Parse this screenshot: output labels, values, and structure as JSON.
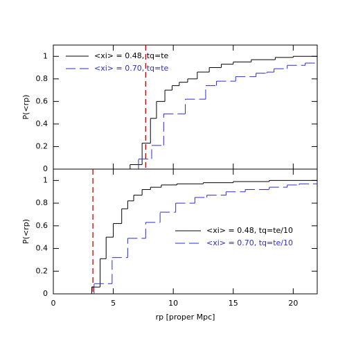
{
  "chart_data": [
    {
      "type": "step",
      "ylabel": "P(<rp)",
      "xlim": [
        0,
        22
      ],
      "ylim": [
        0,
        1.1
      ],
      "yticks": [
        0,
        0.2,
        0.4,
        0.6,
        0.8,
        1
      ],
      "legend": "upper left",
      "vline": 7.7,
      "vline_color": "#cc0000",
      "series": [
        {
          "name": "<xi> = 0.48, tq=te",
          "color": "#000000",
          "dashed": false,
          "x": [
            6.4,
            7.4,
            8.1,
            8.6,
            9.3,
            9.9,
            10.5,
            11.2,
            12.0,
            13.0,
            14.0,
            15.0,
            16.5,
            18.5,
            20.0
          ],
          "values": [
            0.04,
            0.23,
            0.45,
            0.6,
            0.7,
            0.74,
            0.77,
            0.8,
            0.86,
            0.9,
            0.93,
            0.95,
            0.97,
            0.99,
            1
          ]
        },
        {
          "name": "<xi> = 0.70, tq=te",
          "color": "#2a2adb",
          "dashed": true,
          "x": [
            7.1,
            8.2,
            9.2,
            11.0,
            12.7,
            13.6,
            15.2,
            16.9,
            17.8,
            18.4,
            19.5,
            21.0
          ],
          "values": [
            0.09,
            0.21,
            0.49,
            0.62,
            0.74,
            0.78,
            0.82,
            0.85,
            0.86,
            0.89,
            0.92,
            0.94
          ]
        }
      ]
    },
    {
      "type": "step",
      "ylabel": "P(<rp)",
      "xlabel": "rp [proper Mpc]",
      "xlim": [
        0,
        22
      ],
      "ylim": [
        0,
        1.1
      ],
      "xticks": [
        0,
        5,
        10,
        15,
        20
      ],
      "yticks": [
        0,
        0.2,
        0.4,
        0.6,
        0.8,
        1
      ],
      "legend": "lower right",
      "vline": 3.3,
      "vline_color": "#cc0000",
      "series": [
        {
          "name": "<xi> = 0.48, tq=te/10",
          "color": "#000000",
          "dashed": false,
          "x": [
            3.2,
            3.9,
            4.4,
            5.0,
            5.7,
            6.2,
            6.7,
            7.4,
            8.1,
            9.0,
            10.3,
            12.5,
            15.0,
            18.0
          ],
          "values": [
            0.06,
            0.31,
            0.5,
            0.62,
            0.75,
            0.82,
            0.87,
            0.92,
            0.94,
            0.96,
            0.97,
            0.98,
            0.99,
            1
          ]
        },
        {
          "name": "<xi> = 0.70, tq=te/10",
          "color": "#2a2adb",
          "dashed": true,
          "x": [
            3.4,
            4.9,
            6.2,
            7.7,
            8.9,
            10.2,
            11.8,
            12.8,
            14.4,
            16.0,
            18.0,
            19.5,
            20.5
          ],
          "values": [
            0.09,
            0.32,
            0.49,
            0.63,
            0.72,
            0.8,
            0.85,
            0.87,
            0.9,
            0.92,
            0.94,
            0.96,
            0.97
          ]
        }
      ]
    }
  ]
}
